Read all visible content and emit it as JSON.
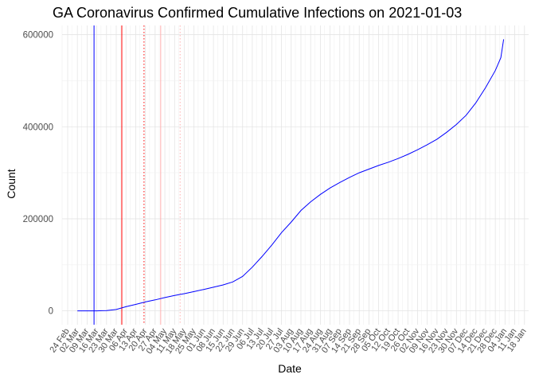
{
  "chart_data": {
    "type": "line",
    "title": "GA Coronavirus Confirmed Cumulative Infections on 2021-01-03",
    "xlabel": "Date",
    "ylabel": "Count",
    "x_range": [
      "2020-02-20",
      "2021-01-21"
    ],
    "ylim": [
      -30000,
      620000
    ],
    "y_ticks": [
      0,
      200000,
      400000,
      600000
    ],
    "y_tick_labels": [
      "0",
      "200000",
      "400000",
      "600000"
    ],
    "x_ticks": [
      "2020-02-24",
      "2020-03-02",
      "2020-03-09",
      "2020-03-16",
      "2020-03-23",
      "2020-03-30",
      "2020-04-06",
      "2020-04-13",
      "2020-04-20",
      "2020-04-27",
      "2020-05-04",
      "2020-05-11",
      "2020-05-18",
      "2020-05-25",
      "2020-06-01",
      "2020-06-08",
      "2020-06-15",
      "2020-06-22",
      "2020-06-29",
      "2020-07-06",
      "2020-07-13",
      "2020-07-20",
      "2020-07-27",
      "2020-08-03",
      "2020-08-10",
      "2020-08-17",
      "2020-08-24",
      "2020-08-31",
      "2020-09-07",
      "2020-09-14",
      "2020-09-21",
      "2020-09-28",
      "2020-10-05",
      "2020-10-12",
      "2020-10-19",
      "2020-10-26",
      "2020-11-02",
      "2020-11-09",
      "2020-11-16",
      "2020-11-23",
      "2020-11-30",
      "2020-12-07",
      "2020-12-14",
      "2020-12-21",
      "2020-12-28",
      "2021-01-04",
      "2021-01-11",
      "2021-01-18"
    ],
    "x_tick_labels": [
      "24 Feb",
      "02 Mar",
      "09 Mar",
      "16 Mar",
      "23 Mar",
      "30 Mar",
      "06 Apr",
      "13 Apr",
      "20 Apr",
      "27 Apr",
      "04 May",
      "11 May",
      "18 May",
      "25 May",
      "01 Jun",
      "08 Jun",
      "15 Jun",
      "22 Jun",
      "29 Jun",
      "06 Jul",
      "13 Jul",
      "20 Jul",
      "27 Jul",
      "03 Aug",
      "10 Aug",
      "17 Aug",
      "24 Aug",
      "31 Aug",
      "07 Sep",
      "14 Sep",
      "21 Sep",
      "28 Sep",
      "05 Oct",
      "12 Oct",
      "19 Oct",
      "26 Oct",
      "02 Nov",
      "09 Nov",
      "16 Nov",
      "23 Nov",
      "30 Nov",
      "07 Dec",
      "14 Dec",
      "21 Dec",
      "28 Dec",
      "04 Jan",
      "11 Jan",
      "18 Jan"
    ],
    "grid": true,
    "series": [
      {
        "color": "#0000ff",
        "points": [
          [
            "2020-03-02",
            0
          ],
          [
            "2020-03-09",
            20
          ],
          [
            "2020-03-16",
            120
          ],
          [
            "2020-03-23",
            800
          ],
          [
            "2020-03-30",
            3000
          ],
          [
            "2020-04-06",
            9000
          ],
          [
            "2020-04-13",
            14000
          ],
          [
            "2020-04-20",
            19400
          ],
          [
            "2020-04-27",
            24000
          ],
          [
            "2020-05-04",
            29000
          ],
          [
            "2020-05-11",
            33500
          ],
          [
            "2020-05-18",
            37500
          ],
          [
            "2020-05-25",
            42000
          ],
          [
            "2020-06-01",
            46500
          ],
          [
            "2020-06-08",
            51500
          ],
          [
            "2020-06-15",
            56500
          ],
          [
            "2020-06-22",
            63000
          ],
          [
            "2020-06-29",
            75000
          ],
          [
            "2020-07-06",
            95000
          ],
          [
            "2020-07-13",
            118000
          ],
          [
            "2020-07-20",
            143000
          ],
          [
            "2020-07-27",
            170000
          ],
          [
            "2020-08-03",
            193000
          ],
          [
            "2020-08-10",
            218000
          ],
          [
            "2020-08-17",
            237000
          ],
          [
            "2020-08-24",
            253000
          ],
          [
            "2020-08-31",
            267000
          ],
          [
            "2020-09-07",
            279000
          ],
          [
            "2020-09-14",
            290000
          ],
          [
            "2020-09-21",
            300000
          ],
          [
            "2020-09-28",
            308000
          ],
          [
            "2020-10-05",
            316000
          ],
          [
            "2020-10-12",
            323000
          ],
          [
            "2020-10-19",
            331000
          ],
          [
            "2020-10-26",
            340000
          ],
          [
            "2020-11-02",
            350000
          ],
          [
            "2020-11-09",
            361000
          ],
          [
            "2020-11-16",
            373000
          ],
          [
            "2020-11-23",
            388000
          ],
          [
            "2020-11-30",
            405000
          ],
          [
            "2020-12-07",
            425000
          ],
          [
            "2020-12-14",
            452000
          ],
          [
            "2020-12-21",
            485000
          ],
          [
            "2020-12-28",
            522000
          ],
          [
            "2021-01-01",
            550000
          ],
          [
            "2021-01-03",
            590000
          ]
        ]
      }
    ],
    "vertical_lines": [
      {
        "date": "2020-03-14",
        "color": "#0000ff",
        "style": "solid"
      },
      {
        "date": "2020-04-03",
        "color": "#ff0000",
        "style": "solid"
      },
      {
        "date": "2020-04-19",
        "color": "#ff0000",
        "style": "dotted"
      },
      {
        "date": "2020-05-01",
        "color": "#ffb0b0",
        "style": "solid"
      },
      {
        "date": "2020-05-15",
        "color": "#ffb0b0",
        "style": "dotted"
      }
    ]
  }
}
